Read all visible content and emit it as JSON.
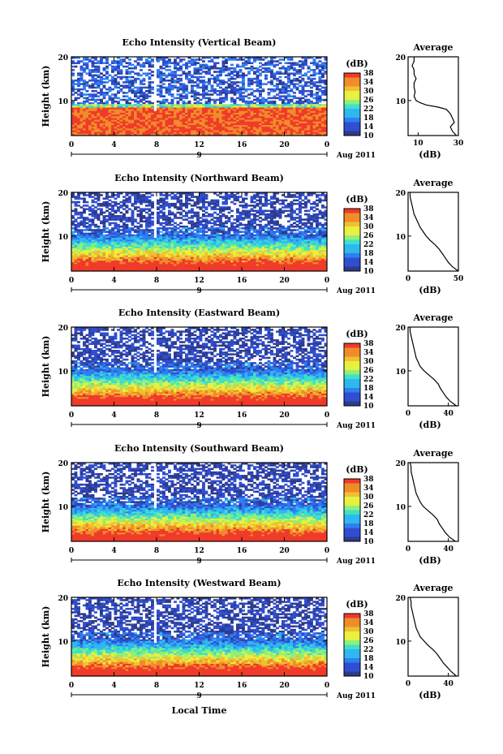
{
  "figure": {
    "xlabel": "Local Time",
    "date_label": "Aug 2011",
    "day_marker": "9"
  },
  "chart_data": [
    {
      "type": "heatmap",
      "title": "Echo Intensity (Vertical Beam)",
      "ylabel": "Height (km)",
      "xlim": [
        0,
        24
      ],
      "ylim": [
        2,
        20
      ],
      "xticks": [
        "0",
        "4",
        "8",
        "12",
        "16",
        "20",
        "0"
      ],
      "yticks": [
        "10",
        "20"
      ],
      "colorbar": {
        "unit": "(dB)",
        "ticks": [
          "10",
          "14",
          "18",
          "22",
          "26",
          "30",
          "34",
          "38"
        ],
        "range": [
          10,
          38
        ]
      },
      "profile": {
        "title": "Average",
        "xlabel": "(dB)",
        "xticks": [
          "10",
          "30"
        ],
        "xlim": [
          5,
          30
        ],
        "height": [
          2,
          3,
          4,
          5,
          6,
          7,
          8,
          8.5,
          9,
          9.5,
          10,
          11,
          12,
          13,
          14,
          15,
          16,
          17,
          18,
          19,
          20
        ],
        "value": [
          29,
          27,
          26,
          28,
          27,
          26,
          24,
          20,
          14,
          11,
          9,
          8,
          8.5,
          8,
          8,
          9,
          8,
          8,
          7,
          8,
          8
        ]
      },
      "noise_floor_km": 8.6
    },
    {
      "type": "heatmap",
      "title": "Echo Intensity (Northward Beam)",
      "ylabel": "Height (km)",
      "xlim": [
        0,
        24
      ],
      "ylim": [
        2,
        20
      ],
      "xticks": [
        "0",
        "4",
        "8",
        "12",
        "16",
        "20",
        "0"
      ],
      "yticks": [
        "10",
        "20"
      ],
      "colorbar": {
        "unit": "(dB)",
        "ticks": [
          "10",
          "14",
          "18",
          "22",
          "26",
          "30",
          "34",
          "38"
        ],
        "range": [
          10,
          38
        ]
      },
      "profile": {
        "title": "Average",
        "xlabel": "(dB)",
        "xticks": [
          "0",
          "50"
        ],
        "xlim": [
          0,
          50
        ],
        "height": [
          2,
          3,
          4,
          5,
          6,
          7,
          8,
          9,
          10,
          11,
          12,
          13,
          14,
          15,
          16,
          17,
          18,
          19,
          20
        ],
        "value": [
          50,
          44,
          40,
          37,
          34,
          31,
          27,
          22,
          18,
          15,
          12,
          10,
          8,
          6,
          5,
          4,
          3,
          2,
          2
        ]
      },
      "noise_floor_km": 10.5
    },
    {
      "type": "heatmap",
      "title": "Echo Intensity (Eastward Beam)",
      "ylabel": "Height (km)",
      "xlim": [
        0,
        24
      ],
      "ylim": [
        2,
        20
      ],
      "xticks": [
        "0",
        "4",
        "8",
        "12",
        "16",
        "20",
        "0"
      ],
      "yticks": [
        "10",
        "20"
      ],
      "colorbar": {
        "unit": "(dB)",
        "ticks": [
          "10",
          "14",
          "18",
          "22",
          "26",
          "30",
          "34",
          "38"
        ],
        "range": [
          10,
          38
        ]
      },
      "profile": {
        "title": "Average",
        "xlabel": "(dB)",
        "xticks": [
          "0",
          "40"
        ],
        "xlim": [
          0,
          50
        ],
        "height": [
          2,
          3,
          4,
          5,
          6,
          7,
          8,
          9,
          10,
          11,
          12,
          13,
          14,
          15,
          16,
          17,
          18,
          19,
          20
        ],
        "value": [
          48,
          42,
          38,
          35,
          32,
          30,
          26,
          21,
          16,
          12,
          10,
          8,
          7,
          6,
          5,
          4,
          3,
          2,
          2
        ]
      },
      "noise_floor_km": 10.5
    },
    {
      "type": "heatmap",
      "title": "Echo Intensity (Southward Beam)",
      "ylabel": "Height (km)",
      "xlim": [
        0,
        24
      ],
      "ylim": [
        2,
        20
      ],
      "xticks": [
        "0",
        "4",
        "8",
        "12",
        "16",
        "20",
        "0"
      ],
      "yticks": [
        "10",
        "20"
      ],
      "colorbar": {
        "unit": "(dB)",
        "ticks": [
          "10",
          "14",
          "18",
          "22",
          "26",
          "30",
          "34",
          "38"
        ],
        "range": [
          10,
          38
        ]
      },
      "profile": {
        "title": "Average",
        "xlabel": "(dB)",
        "xticks": [
          "0",
          "40"
        ],
        "xlim": [
          0,
          50
        ],
        "height": [
          2,
          3,
          4,
          5,
          6,
          7,
          8,
          9,
          10,
          11,
          12,
          13,
          14,
          15,
          16,
          17,
          18,
          19,
          20
        ],
        "value": [
          47,
          41,
          37,
          34,
          31,
          29,
          25,
          20,
          15,
          12,
          10,
          8,
          7,
          6,
          5,
          4,
          3,
          3,
          2
        ]
      },
      "noise_floor_km": 10.5
    },
    {
      "type": "heatmap",
      "title": "Echo Intensity (Westward Beam)",
      "ylabel": "Height (km)",
      "xlim": [
        0,
        24
      ],
      "ylim": [
        2,
        20
      ],
      "xticks": [
        "0",
        "4",
        "8",
        "12",
        "16",
        "20",
        "0"
      ],
      "yticks": [
        "10",
        "20"
      ],
      "colorbar": {
        "unit": "(dB)",
        "ticks": [
          "10",
          "14",
          "18",
          "22",
          "26",
          "30",
          "34",
          "38"
        ],
        "range": [
          10,
          38
        ]
      },
      "profile": {
        "title": "Average",
        "xlabel": "(dB)",
        "xticks": [
          "0",
          "40"
        ],
        "xlim": [
          0,
          50
        ],
        "height": [
          2,
          3,
          4,
          5,
          6,
          7,
          8,
          9,
          10,
          11,
          12,
          13,
          14,
          15,
          16,
          17,
          18,
          19,
          20
        ],
        "value": [
          48,
          43,
          39,
          35,
          32,
          29,
          25,
          20,
          16,
          12,
          10,
          8,
          7,
          6,
          5,
          4,
          3,
          3,
          2
        ]
      },
      "noise_floor_km": 10.5
    }
  ]
}
